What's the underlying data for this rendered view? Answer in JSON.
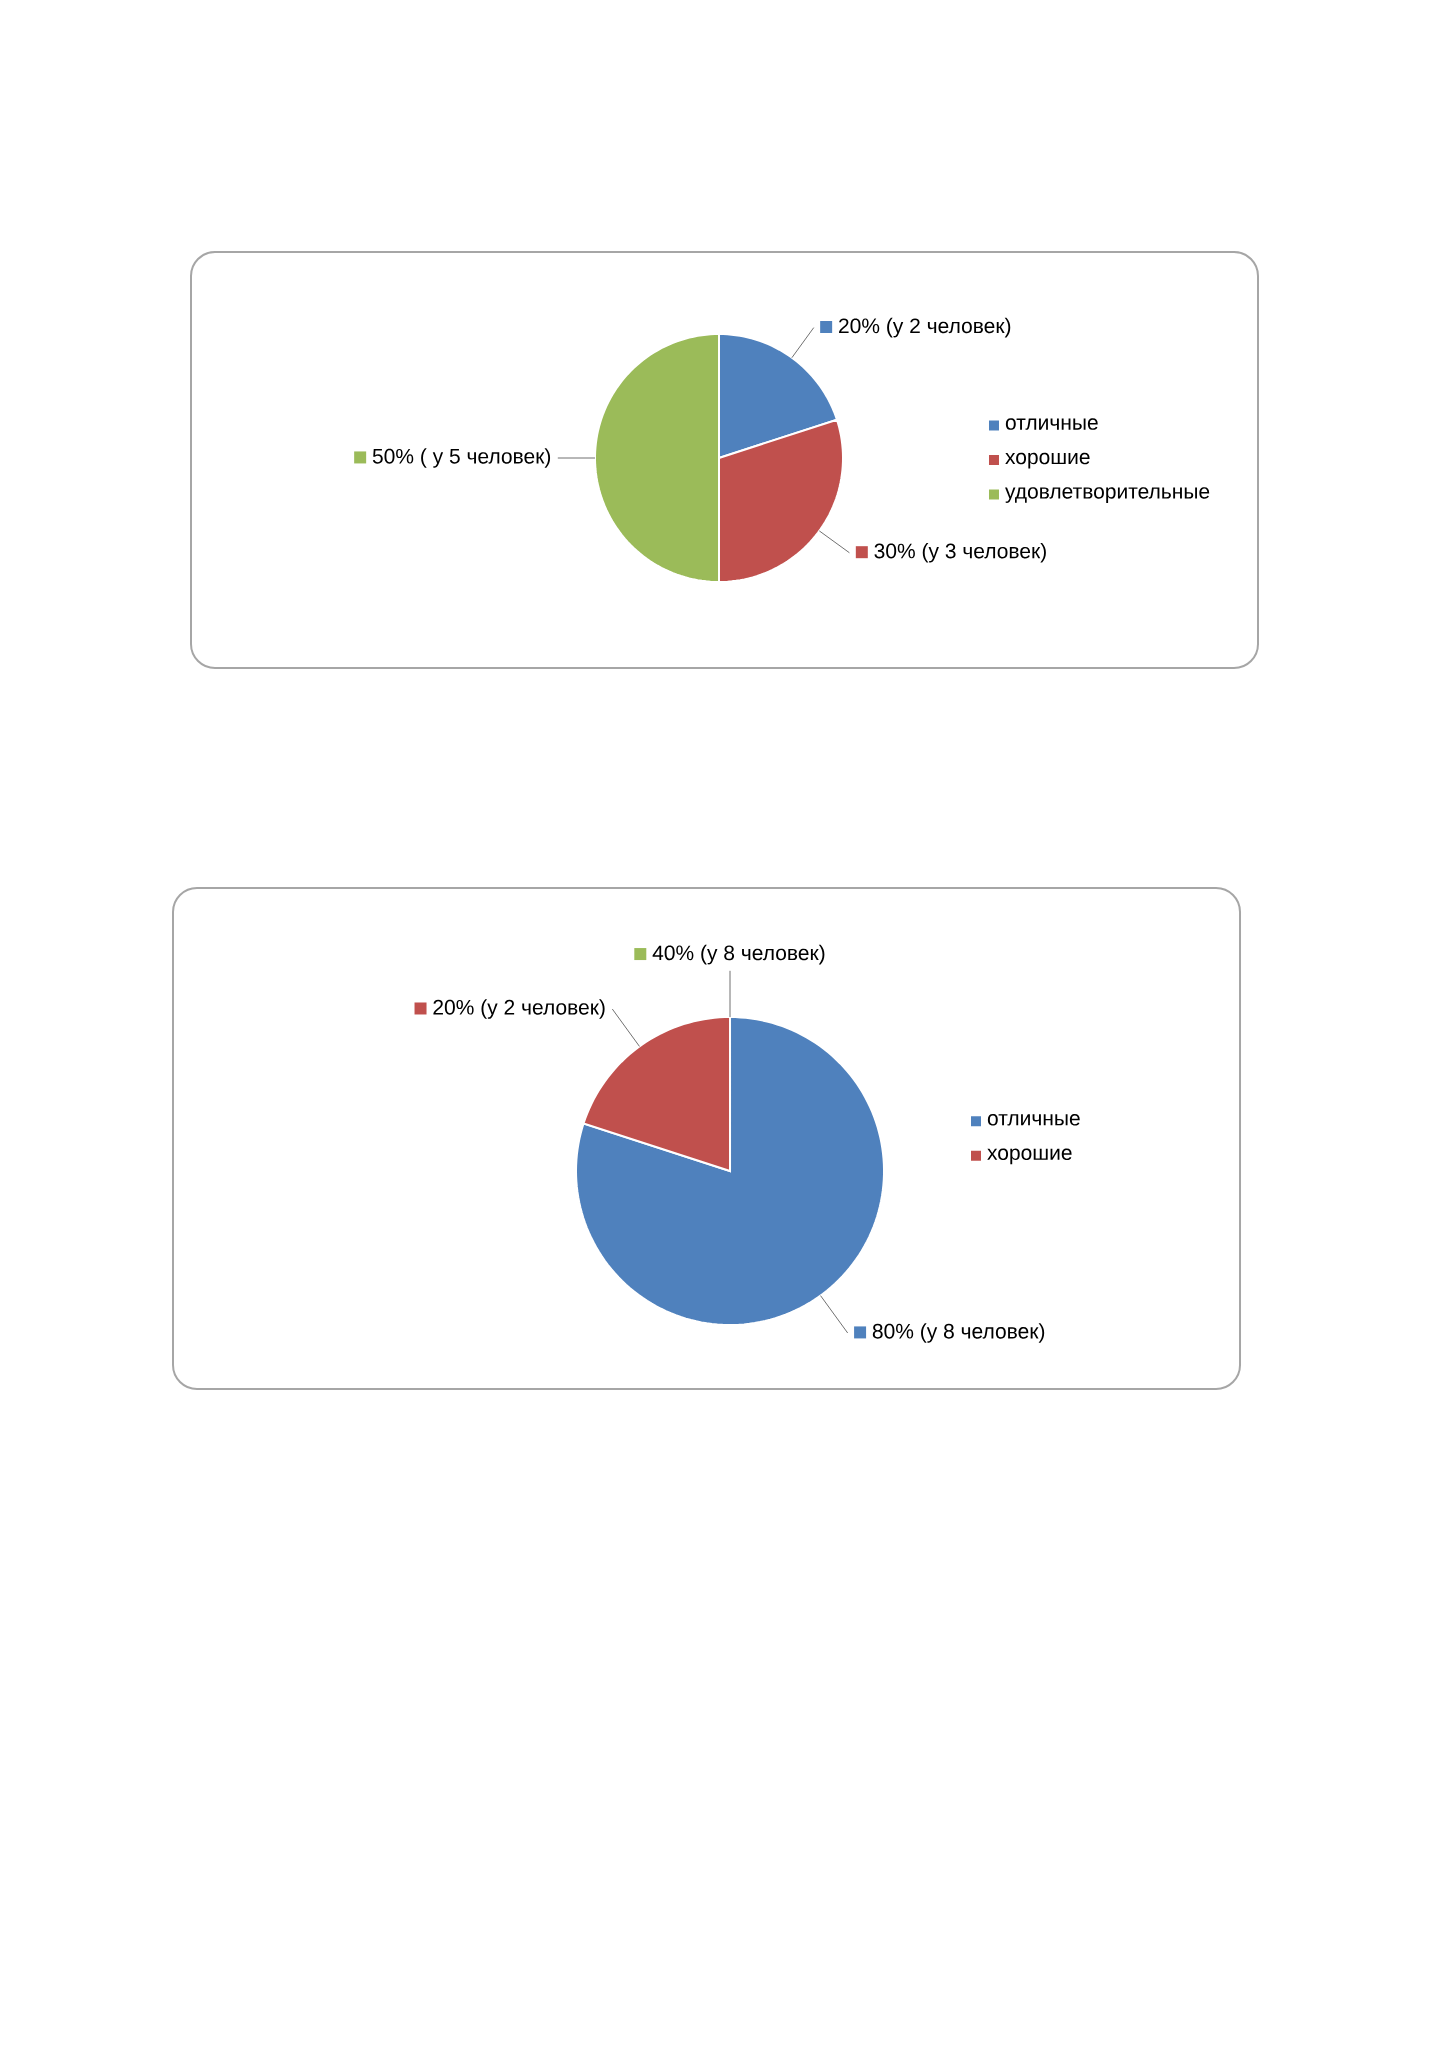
{
  "chart_data": [
    {
      "type": "pie",
      "categories": [
        "отличные",
        "хорошие",
        "удовлетворительные"
      ],
      "values": [
        20,
        30,
        50
      ],
      "colors": [
        "#4f81bd",
        "#c0504d",
        "#9bbb59"
      ],
      "value_labels": [
        "20% (у 2 человек)",
        "30% (у 3 человек)",
        "50% ( у 5 человек)"
      ],
      "legend": "right"
    },
    {
      "type": "pie",
      "categories": [
        "отличные",
        "хорошие",
        null
      ],
      "values": [
        80,
        20,
        0
      ],
      "colors": [
        "#4f81bd",
        "#c0504d",
        "#9bbb59"
      ],
      "value_labels": [
        "80% (у 8 человек)",
        "20% (у 2 человек)",
        null
      ],
      "annotations": [
        "40% (у 8 человек)"
      ],
      "legend": "right"
    }
  ]
}
